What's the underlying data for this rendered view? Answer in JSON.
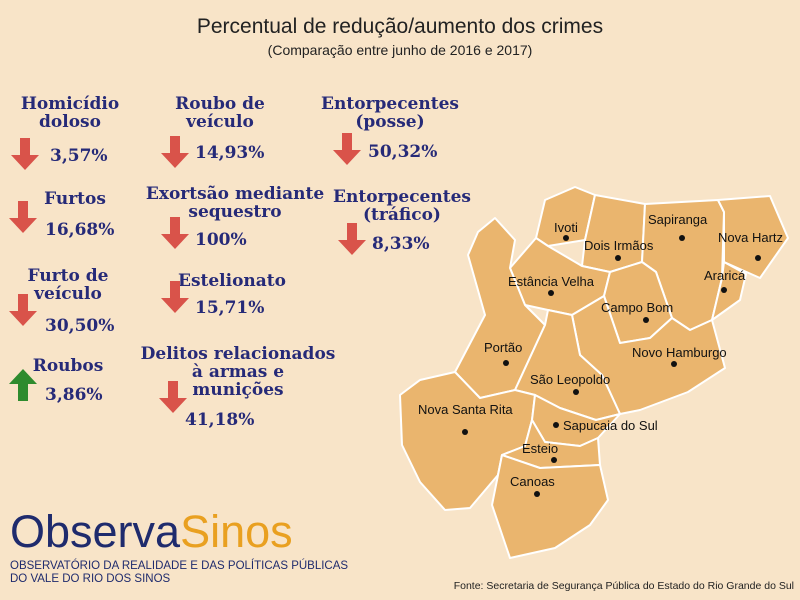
{
  "header": {
    "title": "Percentual de redução/aumento dos crimes",
    "subtitle": "(Comparação entre junho de 2016 e 2017)"
  },
  "colors": {
    "down_arrow": "#d9534a",
    "up_arrow": "#2e8b2e",
    "stat_text": "#262a78",
    "map_fill": "#eab56e",
    "background": "#f8e4c8"
  },
  "stats": [
    {
      "id": "homicidio",
      "name_lines": [
        "Homicídio",
        "doloso"
      ],
      "value": "3,57%",
      "direction": "down"
    },
    {
      "id": "furtos",
      "name_lines": [
        "Furtos"
      ],
      "value": "16,68%",
      "direction": "down"
    },
    {
      "id": "furto-veiculo",
      "name_lines": [
        "Furto de",
        "veículo"
      ],
      "value": "30,50%",
      "direction": "down"
    },
    {
      "id": "roubos",
      "name_lines": [
        "Roubos"
      ],
      "value": "3,86%",
      "direction": "up"
    },
    {
      "id": "roubo-veiculo",
      "name_lines": [
        "Roubo de",
        "veículo"
      ],
      "value": "14,93%",
      "direction": "down"
    },
    {
      "id": "extorsao",
      "name_lines": [
        "Exortsão mediante",
        "sequestro"
      ],
      "value": "100%",
      "direction": "down"
    },
    {
      "id": "estelionato",
      "name_lines": [
        "Estelionato"
      ],
      "value": "15,71%",
      "direction": "down"
    },
    {
      "id": "delitos-armas",
      "name_lines": [
        "Delitos relacionados",
        "à armas e",
        "munições"
      ],
      "value": "41,18%",
      "direction": "down"
    },
    {
      "id": "entorpecentes-posse",
      "name_lines": [
        "Entorpecentes",
        "(posse)"
      ],
      "value": "50,32%",
      "direction": "down"
    },
    {
      "id": "entorpecentes-trafico",
      "name_lines": [
        "Entorpecentes",
        "(tráfico)"
      ],
      "value": "8,33%",
      "direction": "down"
    }
  ],
  "map": {
    "cities": [
      "Ivoti",
      "Dois Irmãos",
      "Sapiranga",
      "Nova Hartz",
      "Araricá",
      "Estância Velha",
      "Campo Bom",
      "Portão",
      "Novo Hamburgo",
      "São Leopoldo",
      "Nova Santa Rita",
      "Sapucaia do Sul",
      "Esteio",
      "Canoas"
    ]
  },
  "logo": {
    "part1": "Observa",
    "part2": "Sinos",
    "line1": "OBSERVATÓRIO DA REALIDADE E DAS POLÍTICAS PÚBLICAS",
    "line2": "DO VALE DO RIO DOS SINOS"
  },
  "source": "Fonte: Secretaria de Segurança Pública do Estado do Rio Grande do Sul"
}
